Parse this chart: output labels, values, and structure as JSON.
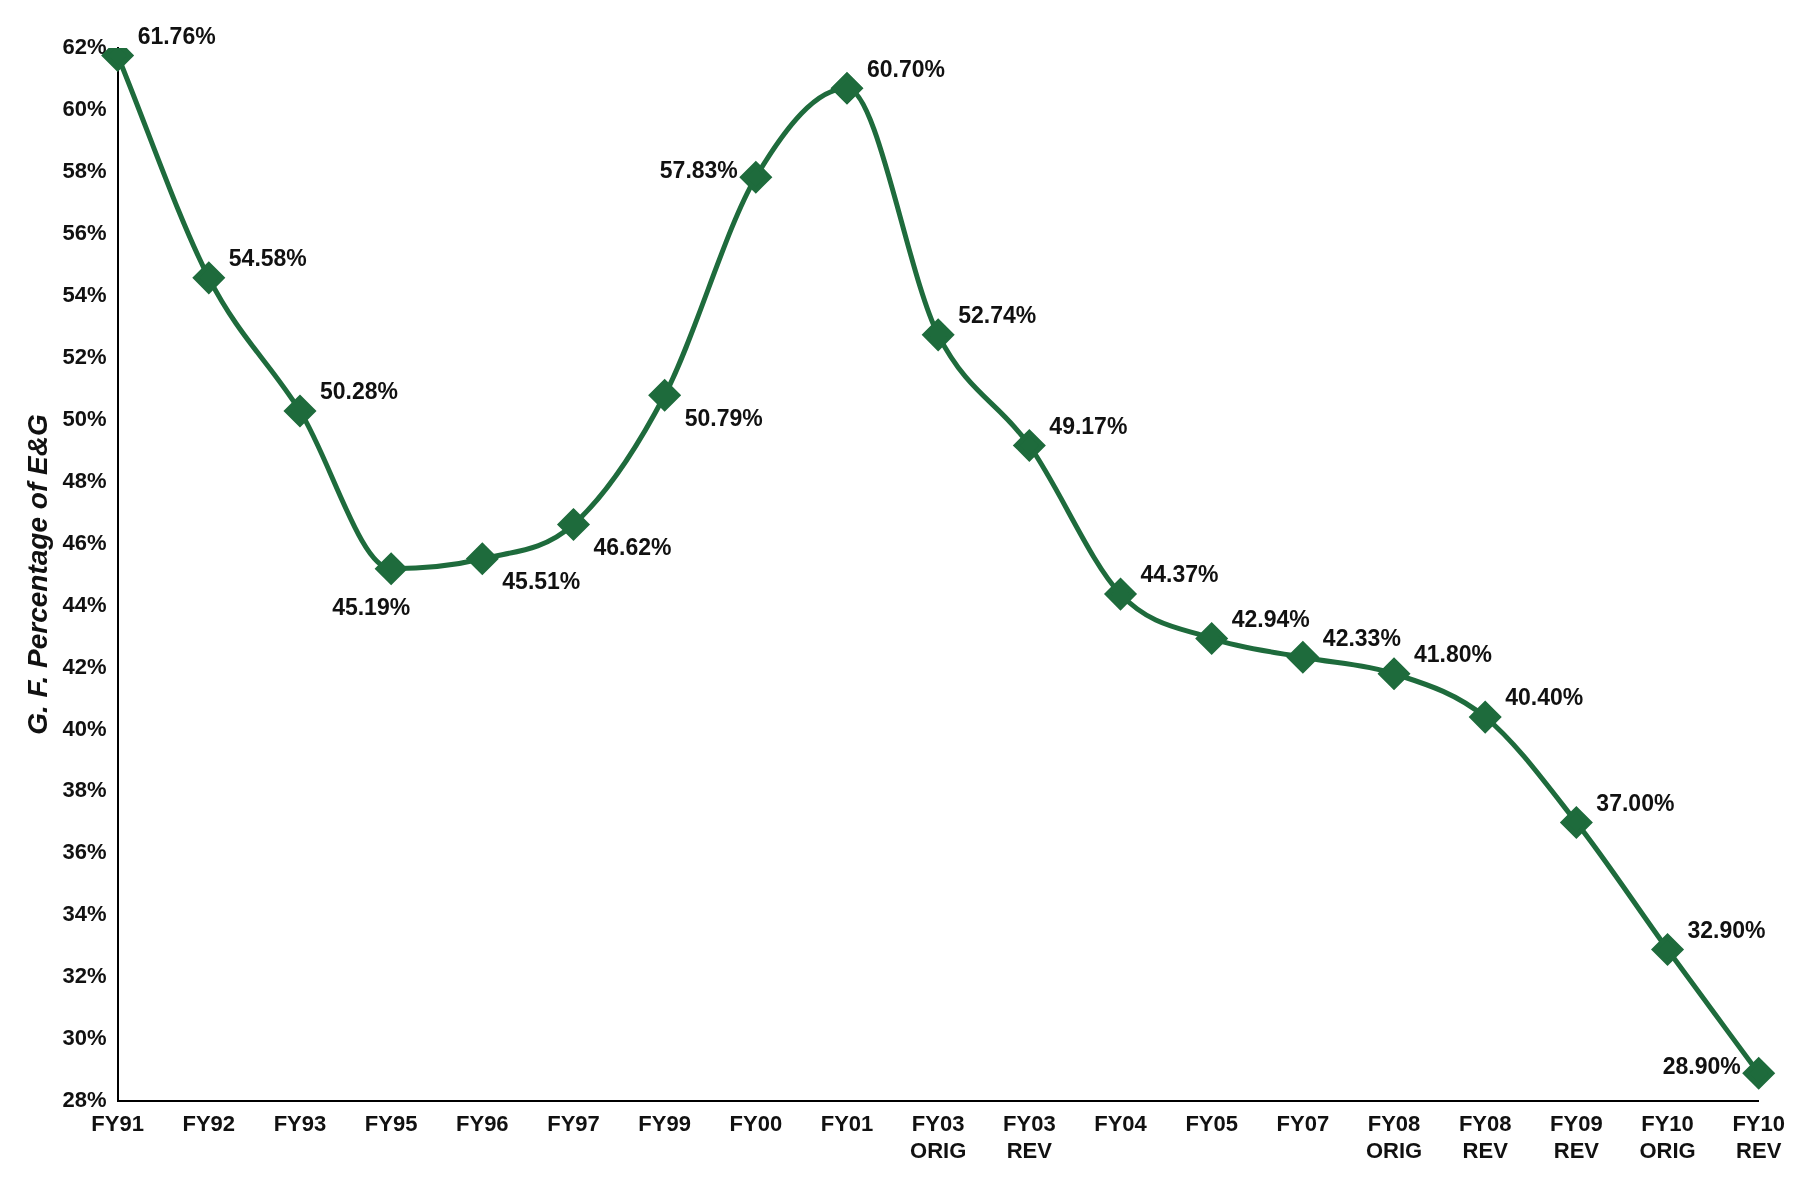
{
  "chart_data": {
    "type": "line",
    "ylabel": "G. F. Percentage of E&G",
    "categories": [
      "FY91",
      "FY92",
      "FY93",
      "FY95",
      "FY96",
      "FY97",
      "FY99",
      "FY00",
      "FY01",
      "FY03 ORIG",
      "FY03 REV",
      "FY04",
      "FY05",
      "FY07",
      "FY08 ORIG",
      "FY08 REV",
      "FY09 REV",
      "FY10 ORIG",
      "FY10 REV"
    ],
    "series": [
      {
        "color": "#1e6b3c",
        "values": [
          61.76,
          54.58,
          50.28,
          45.19,
          45.51,
          46.62,
          50.79,
          57.83,
          60.7,
          52.74,
          49.17,
          44.37,
          42.94,
          42.33,
          41.8,
          40.4,
          37.0,
          32.9,
          28.9
        ],
        "value_labels": [
          "61.76%",
          "54.58%",
          "50.28%",
          "45.19%",
          "45.51%",
          "46.62%",
          "50.79%",
          "57.83%",
          "60.70%",
          "52.74%",
          "49.17%",
          "44.37%",
          "42.94%",
          "42.33%",
          "41.80%",
          "40.40%",
          "37.00%",
          "32.90%",
          "28.90%"
        ]
      }
    ],
    "ylim": [
      28,
      62
    ],
    "yticks": [
      {
        "value": 28,
        "label": "28%"
      },
      {
        "value": 30,
        "label": "30%"
      },
      {
        "value": 32,
        "label": "32%"
      },
      {
        "value": 34,
        "label": "34%"
      },
      {
        "value": 36,
        "label": "36%"
      },
      {
        "value": 38,
        "label": "38%"
      },
      {
        "value": 40,
        "label": "40%"
      },
      {
        "value": 42,
        "label": "42%"
      },
      {
        "value": 44,
        "label": "44%"
      },
      {
        "value": 46,
        "label": "46%"
      },
      {
        "value": 48,
        "label": "48%"
      },
      {
        "value": 50,
        "label": "50%"
      },
      {
        "value": 52,
        "label": "52%"
      },
      {
        "value": 54,
        "label": "54%"
      },
      {
        "value": 56,
        "label": "56%"
      },
      {
        "value": 58,
        "label": "58%"
      },
      {
        "value": 60,
        "label": "60%"
      },
      {
        "value": 62,
        "label": "62%"
      }
    ],
    "grid": false,
    "legend": false,
    "marker": "diamond",
    "line_style": "solid"
  }
}
